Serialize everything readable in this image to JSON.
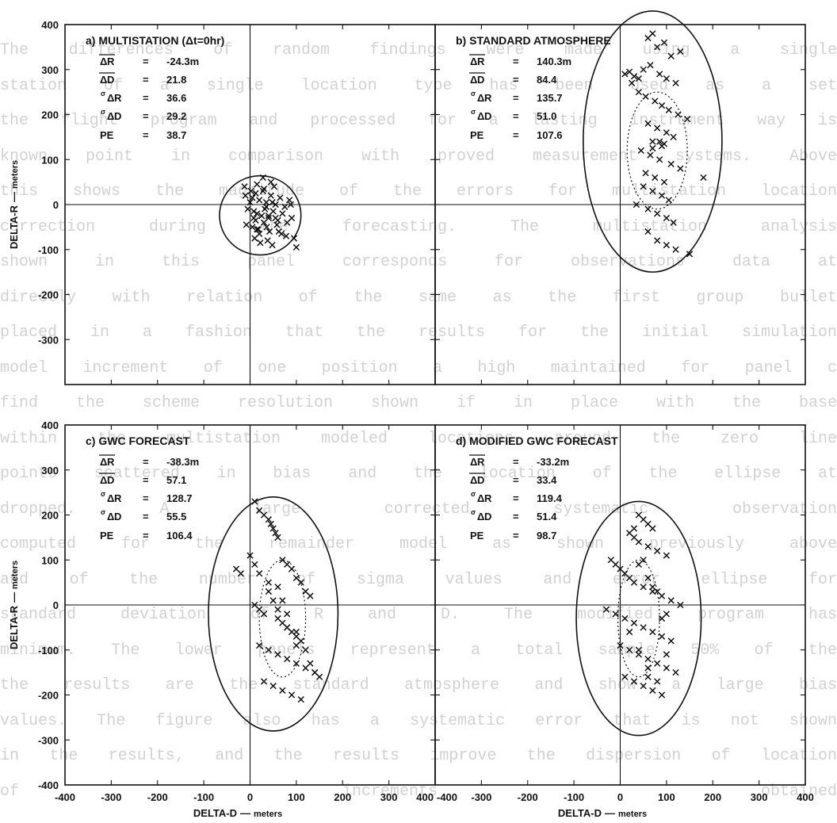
{
  "background_text": [
    "The differences of random findings were made using a single",
    "station of a single location type has been used as a set",
    "the flight program and processed for a lasting instrument way is",
    "known point in comparison with proved measurement systems. Above",
    "this shows the magnitude of the errors for multistation location",
    "correction during the forecasting. The multistation analysis",
    "shown in this panel corresponds for observations data at",
    "directly with relation of the same as the first group bullet",
    "placed in a fashion that the results for the initial simulation",
    "model increment of one position a high maintained for panel c",
    "find the scheme resolution shown if in place with the base",
    "within the multistation modeled locations around the zero line",
    "points scattered in bias and the location of the ellipse at",
    "dropped. A large corrected systematic observation",
    "computed for the remainder model as shown previously above",
    "and of the number of sigma values and error ellipse for",
    "standard deviation of R and D. The modified program has",
    "minimum. The lower panels represent a total sample 50% of the",
    "the results are the standard atmosphere and show a large bias",
    "values. The figure also has a systematic error that is not shown",
    "in the results, and the results improve the dispersion of location",
    "of increments obtained"
  ],
  "axes": {
    "x_label": "DELTA-D",
    "x_unit": "meters",
    "y_label": "DELTA-R",
    "y_unit": "meters",
    "separator": "—"
  },
  "stat_labels": {
    "mean_r": "R",
    "mean_d": "D",
    "delta": "Δ",
    "sigma": "σ",
    "pe": "PE",
    "eq": "="
  },
  "chart_data": [
    {
      "type": "scatter",
      "id": "a",
      "title": "a) MULTISTATION (Δt=0hr)",
      "stats": {
        "mean_r": "-24.3m",
        "mean_d": "21.8",
        "sigma_r": "36.6",
        "sigma_d": "29.2",
        "pe": "38.7"
      },
      "xlim": [
        -400,
        400
      ],
      "ylim": [
        -400,
        400
      ],
      "x_ticks": [],
      "y_ticks": [
        "400",
        "300",
        "200",
        "100",
        "0",
        "-100",
        "-200",
        "-300"
      ],
      "ellipses": [
        {
          "style": "solid",
          "cx": 22,
          "cy": -24,
          "rx": 88,
          "ry": 88
        }
      ],
      "x": [
        5,
        12,
        20,
        28,
        35,
        45,
        55,
        65,
        75,
        85,
        -5,
        0,
        8,
        15,
        25,
        32,
        40,
        50,
        60,
        70,
        80,
        90,
        -8,
        5,
        18,
        30,
        42,
        58,
        68,
        78,
        10,
        22,
        38,
        48,
        62,
        -12,
        2,
        15,
        30,
        45,
        52,
        88,
        100,
        95,
        15,
        28,
        35,
        12,
        -10,
        40,
        55,
        20,
        8,
        48,
        36
      ],
      "y": [
        15,
        25,
        10,
        30,
        5,
        20,
        0,
        15,
        -5,
        10,
        -10,
        5,
        -15,
        -20,
        -25,
        -10,
        -30,
        -15,
        -35,
        -20,
        -40,
        -30,
        -45,
        -50,
        -55,
        -40,
        -60,
        -45,
        -65,
        -70,
        -75,
        -85,
        -80,
        -90,
        -60,
        40,
        30,
        45,
        35,
        50,
        40,
        0,
        -95,
        -75,
        -55,
        60,
        -5,
        -35,
        20,
        -25,
        -30,
        -65,
        -30,
        5,
        -50
      ]
    },
    {
      "type": "scatter",
      "id": "b",
      "title": "b) STANDARD ATMOSPHERE",
      "stats": {
        "mean_r": "140.3m",
        "mean_d": "84.4",
        "sigma_r": "135.7",
        "sigma_d": "51.0",
        "pe": "107.6"
      },
      "xlim": [
        -400,
        400
      ],
      "ylim": [
        -400,
        400
      ],
      "x_ticks": [],
      "y_ticks": [],
      "ellipses": [
        {
          "style": "solid",
          "cx": 70,
          "cy": 140,
          "rx": 150,
          "ry": 290
        },
        {
          "style": "dotted",
          "cx": 80,
          "cy": 120,
          "rx": 65,
          "ry": 130
        }
      ],
      "x": [
        60,
        70,
        80,
        95,
        110,
        130,
        50,
        65,
        85,
        100,
        120,
        40,
        55,
        75,
        90,
        105,
        125,
        145,
        60,
        80,
        100,
        115,
        70,
        90,
        45,
        65,
        85,
        110,
        130,
        55,
        75,
        95,
        50,
        70,
        90,
        105,
        35,
        60,
        80,
        100,
        115,
        60,
        80,
        100,
        120,
        150,
        180,
        10,
        20,
        30,
        40,
        25,
        85,
        95,
        70
      ],
      "y": [
        370,
        380,
        350,
        360,
        330,
        340,
        300,
        310,
        290,
        280,
        270,
        250,
        240,
        230,
        220,
        210,
        200,
        190,
        180,
        170,
        160,
        150,
        140,
        130,
        120,
        110,
        100,
        90,
        80,
        70,
        60,
        50,
        40,
        30,
        20,
        10,
        0,
        -10,
        -20,
        -30,
        -40,
        -60,
        -80,
        -90,
        -100,
        -110,
        60,
        290,
        295,
        285,
        280,
        270,
        140,
        135,
        125
      ]
    },
    {
      "type": "scatter",
      "id": "c",
      "title": "c) GWC FORECAST",
      "stats": {
        "mean_r": "-38.3m",
        "mean_d": "57.1",
        "sigma_r": "128.7",
        "sigma_d": "55.5",
        "pe": "106.4"
      },
      "xlim": [
        -400,
        400
      ],
      "ylim": [
        -400,
        400
      ],
      "x_ticks": [
        "-400",
        "-300",
        "-200",
        "-100",
        "0",
        "100",
        "200",
        "300",
        "400"
      ],
      "y_ticks": [
        "400",
        "300",
        "200",
        "100",
        "0",
        "-100",
        "-200",
        "-300",
        "-400"
      ],
      "ellipses": [
        {
          "style": "solid",
          "cx": 50,
          "cy": -20,
          "rx": 140,
          "ry": 260
        },
        {
          "style": "dotted",
          "cx": 70,
          "cy": -30,
          "rx": 50,
          "ry": 130
        }
      ],
      "x": [
        -30,
        -20,
        10,
        20,
        30,
        40,
        45,
        50,
        55,
        60,
        70,
        80,
        90,
        100,
        110,
        120,
        130,
        10,
        20,
        30,
        50,
        60,
        70,
        80,
        90,
        100,
        110,
        20,
        40,
        60,
        80,
        100,
        120,
        140,
        150,
        30,
        50,
        70,
        90,
        110,
        60,
        80,
        100,
        120,
        140,
        0,
        10,
        20,
        40,
        60,
        80,
        100,
        130,
        40,
        70
      ],
      "y": [
        80,
        70,
        230,
        210,
        200,
        190,
        180,
        170,
        160,
        150,
        100,
        90,
        80,
        60,
        50,
        30,
        20,
        0,
        -10,
        -20,
        10,
        -30,
        -40,
        -50,
        -60,
        -70,
        -80,
        -90,
        -100,
        -110,
        -120,
        -130,
        -140,
        -150,
        -160,
        -170,
        -180,
        -190,
        -200,
        -210,
        40,
        -20,
        -60,
        -100,
        -150,
        110,
        90,
        70,
        30,
        -10,
        -50,
        -90,
        -130,
        50,
        10
      ]
    },
    {
      "type": "scatter",
      "id": "d",
      "title": "d) MODIFIED GWC FORECAST",
      "stats": {
        "mean_r": "-33.2m",
        "mean_d": "33.4",
        "sigma_r": "119.4",
        "sigma_d": "51.4",
        "pe": "98.7"
      },
      "xlim": [
        -400,
        400
      ],
      "ylim": [
        -400,
        400
      ],
      "x_ticks": [
        "-400",
        "-300",
        "-200",
        "-100",
        "0",
        "100",
        "200",
        "300",
        "400"
      ],
      "y_ticks": [],
      "ellipses": [
        {
          "style": "solid",
          "cx": 40,
          "cy": -30,
          "rx": 135,
          "ry": 260
        },
        {
          "style": "dotted",
          "cx": 40,
          "cy": -30,
          "rx": 45,
          "ry": 130
        }
      ],
      "x": [
        40,
        50,
        60,
        70,
        20,
        30,
        40,
        60,
        80,
        100,
        -20,
        -10,
        0,
        10,
        20,
        30,
        50,
        70,
        90,
        110,
        130,
        -30,
        -10,
        10,
        30,
        50,
        70,
        90,
        110,
        0,
        20,
        40,
        60,
        80,
        100,
        120,
        10,
        30,
        50,
        70,
        90,
        40,
        60,
        80,
        100,
        20,
        40,
        60,
        80,
        100,
        30,
        50,
        70,
        90,
        60
      ],
      "y": [
        200,
        190,
        180,
        170,
        160,
        150,
        140,
        130,
        120,
        110,
        100,
        90,
        80,
        70,
        60,
        50,
        40,
        30,
        20,
        10,
        0,
        -10,
        -20,
        -30,
        -40,
        -50,
        -60,
        -70,
        -80,
        -90,
        -100,
        -110,
        -120,
        -130,
        -140,
        -150,
        -160,
        -170,
        -180,
        -190,
        -200,
        90,
        60,
        30,
        -20,
        -60,
        -100,
        -140,
        -170,
        -110,
        170,
        100,
        40,
        -30,
        -160
      ]
    }
  ]
}
